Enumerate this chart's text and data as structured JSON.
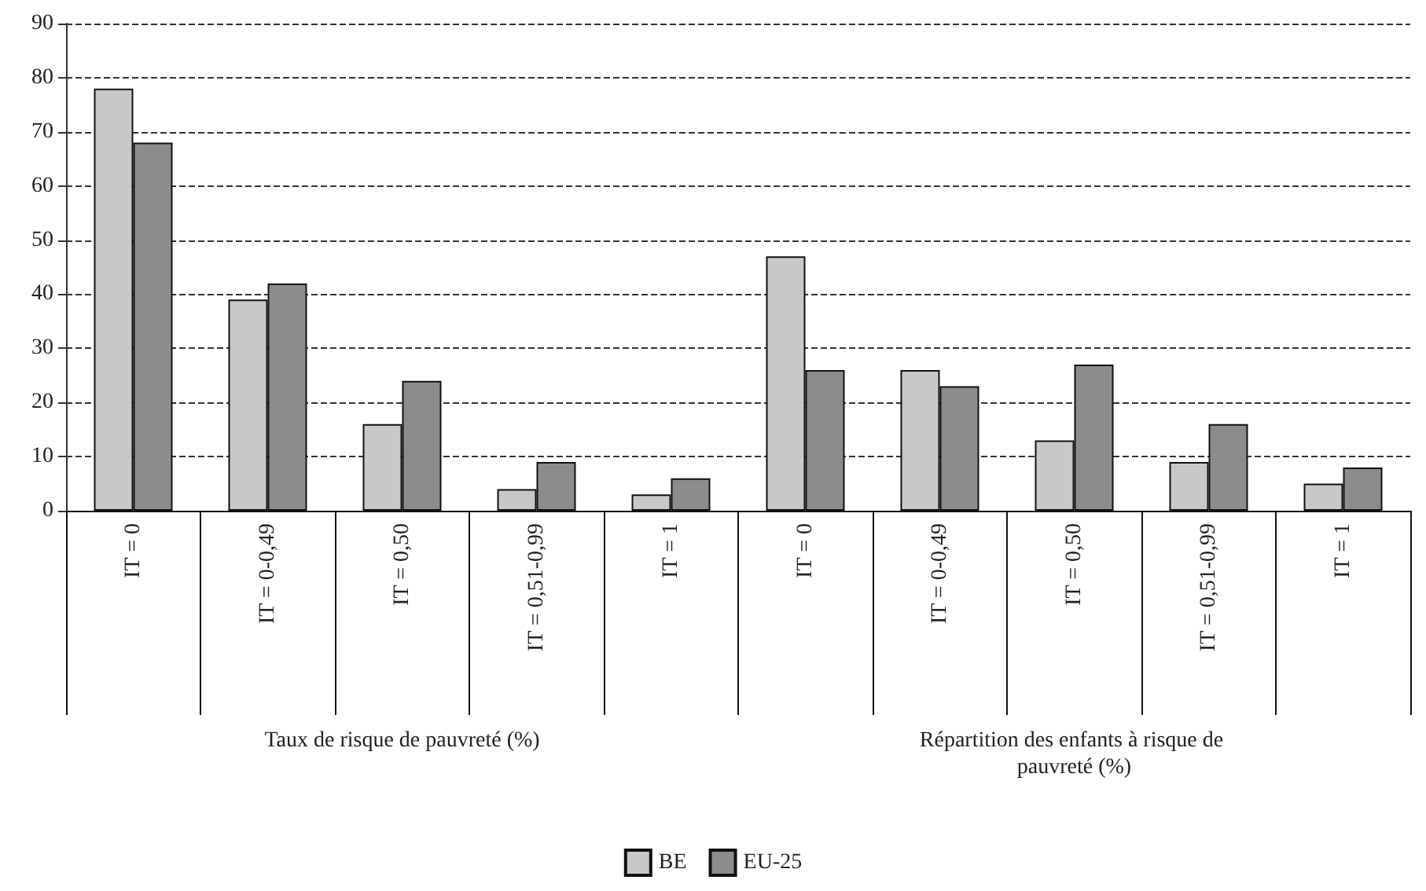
{
  "chart_data": {
    "type": "bar",
    "categories": [
      "IT = 0",
      "IT = 0-0,49",
      "IT = 0,50",
      "IT = 0,51-0,99",
      "IT = 1",
      "IT = 0",
      "IT = 0-0,49",
      "IT = 0,50",
      "IT = 0,51-0,99",
      "IT = 1"
    ],
    "series": [
      {
        "name": "BE",
        "color": "#c8c8c8",
        "values": [
          78,
          39,
          16,
          4,
          3,
          47,
          26,
          13,
          9,
          5
        ]
      },
      {
        "name": "EU-25",
        "color": "#8c8c8c",
        "values": [
          68,
          42,
          24,
          9,
          6,
          26,
          23,
          27,
          16,
          8
        ]
      }
    ],
    "annotations": [
      "Taux de risque de pauvreté (%)",
      "Répartition des enfants à risque de pauvreté (%)"
    ],
    "ylim": [
      0,
      90
    ],
    "yticks": [
      0,
      10,
      20,
      30,
      40,
      50,
      60,
      70,
      80,
      90
    ],
    "grid": "y",
    "legend": "bottom"
  }
}
